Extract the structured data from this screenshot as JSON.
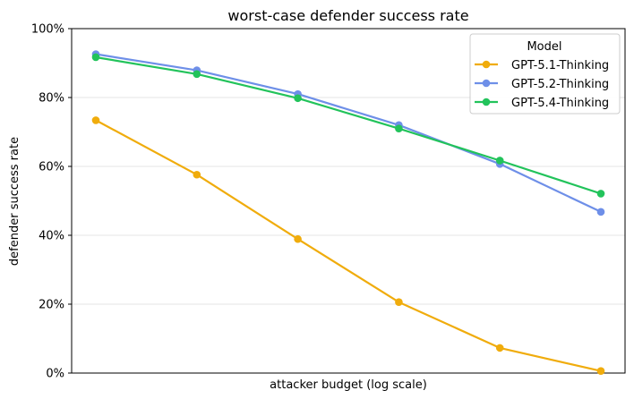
{
  "chart_data": {
    "type": "line",
    "title": "worst-case defender success rate",
    "xlabel": "attacker budget (log scale)",
    "ylabel": "defender success rate",
    "xscale": "log",
    "x_ticks_shown": false,
    "ylim": [
      0,
      100
    ],
    "yticks": [
      0,
      20,
      40,
      60,
      80,
      100
    ],
    "ytick_labels": [
      "0%",
      "20%",
      "40%",
      "60%",
      "80%",
      "100%"
    ],
    "grid": "horizontal",
    "legend": {
      "title": "Model",
      "placement": "top-right"
    },
    "series": [
      {
        "name": "GPT-5.1-Thinking",
        "color": "#f0ac0c",
        "values": [
          73.4,
          57.6,
          38.9,
          20.6,
          7.3,
          0.6
        ]
      },
      {
        "name": "GPT-5.2-Thinking",
        "color": "#6e8fe8",
        "values": [
          92.6,
          87.9,
          81.0,
          72.0,
          60.7,
          46.8
        ]
      },
      {
        "name": "GPT-5.4-Thinking",
        "color": "#22c35b",
        "values": [
          91.7,
          86.8,
          79.8,
          71.0,
          61.7,
          52.1
        ]
      }
    ]
  }
}
